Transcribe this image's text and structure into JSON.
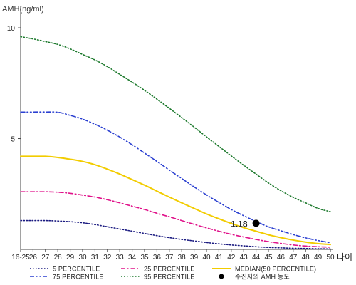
{
  "chart_data": {
    "type": "line",
    "ylabel": "AMH(ng/ml)",
    "xlabel": "나이",
    "ylim": [
      0,
      11
    ],
    "yticks": [
      5,
      10
    ],
    "categories": [
      "16-25",
      "26",
      "27",
      "28",
      "29",
      "30",
      "31",
      "32",
      "33",
      "34",
      "35",
      "36",
      "37",
      "38",
      "39",
      "40",
      "41",
      "42",
      "43",
      "44",
      "45",
      "46",
      "47",
      "48",
      "49",
      "50"
    ],
    "grid": false,
    "legend_position": "bottom",
    "series": [
      {
        "name": "5 PERCENTILE",
        "color": "#1a1a80",
        "dash": "dot",
        "values": [
          1.3,
          1.3,
          1.3,
          1.28,
          1.25,
          1.2,
          1.12,
          1.02,
          0.92,
          0.82,
          0.72,
          0.62,
          0.53,
          0.45,
          0.38,
          0.31,
          0.25,
          0.2,
          0.16,
          0.12,
          0.09,
          0.07,
          0.05,
          0.04,
          0.03,
          0.02
        ]
      },
      {
        "name": "25 PERCENTILE",
        "color": "#e0128a",
        "dash": "dashdot",
        "values": [
          2.6,
          2.6,
          2.6,
          2.58,
          2.53,
          2.45,
          2.36,
          2.24,
          2.1,
          1.95,
          1.8,
          1.63,
          1.47,
          1.3,
          1.13,
          0.97,
          0.82,
          0.68,
          0.56,
          0.45,
          0.35,
          0.27,
          0.2,
          0.15,
          0.12,
          0.1
        ]
      },
      {
        "name": "75 PERCENTILE",
        "color": "#2a3fd0",
        "dash": "dashdotdot",
        "values": [
          6.2,
          6.2,
          6.2,
          6.19,
          6.05,
          5.88,
          5.65,
          5.38,
          5.07,
          4.72,
          4.35,
          3.97,
          3.58,
          3.2,
          2.82,
          2.46,
          2.12,
          1.8,
          1.52,
          1.26,
          1.02,
          0.84,
          0.67,
          0.52,
          0.4,
          0.3
        ]
      },
      {
        "name": "95 PERCENTILE",
        "color": "#1e7a2e",
        "dash": "dot",
        "values": [
          9.6,
          9.5,
          9.38,
          9.25,
          9.05,
          8.8,
          8.55,
          8.25,
          7.9,
          7.55,
          7.18,
          6.78,
          6.37,
          5.95,
          5.52,
          5.08,
          4.65,
          4.22,
          3.8,
          3.4,
          3.0,
          2.65,
          2.35,
          2.1,
          1.85,
          1.7
        ]
      },
      {
        "name": "MEDIAN(50 PERCENTILE)",
        "color": "#f2cc00",
        "dash": "solid",
        "values": [
          4.2,
          4.2,
          4.2,
          4.15,
          4.07,
          3.97,
          3.82,
          3.62,
          3.4,
          3.15,
          2.9,
          2.63,
          2.36,
          2.1,
          1.85,
          1.6,
          1.38,
          1.17,
          0.98,
          0.82,
          0.66,
          0.53,
          0.42,
          0.33,
          0.26,
          0.22
        ]
      }
    ],
    "highlight_point": {
      "name": "수진자의 AMH 농도",
      "x": "44",
      "y": 1.18,
      "label": "1.18",
      "color": "#000000"
    }
  }
}
